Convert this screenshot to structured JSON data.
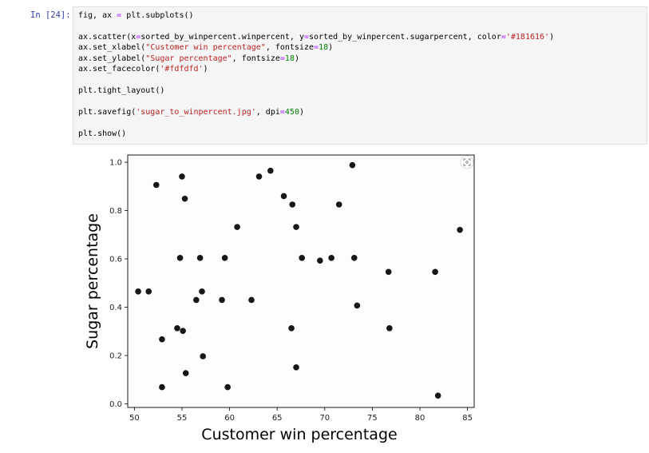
{
  "cell": {
    "prompt": "In [24]:",
    "code_lines": [
      [
        {
          "t": "fig, ax "
        },
        {
          "t": "=",
          "c": "op"
        },
        {
          "t": " plt.subplots()"
        }
      ],
      [],
      [
        {
          "t": "ax.scatter(x"
        },
        {
          "t": "=",
          "c": "op"
        },
        {
          "t": "sorted_by_winpercent.winpercent, y"
        },
        {
          "t": "=",
          "c": "op"
        },
        {
          "t": "sorted_by_winpercent.sugarpercent, color"
        },
        {
          "t": "=",
          "c": "op"
        },
        {
          "t": "'#181616'",
          "c": "str"
        },
        {
          "t": ")"
        }
      ],
      [
        {
          "t": "ax.set_xlabel("
        },
        {
          "t": "\"Customer win percentage\"",
          "c": "str"
        },
        {
          "t": ", fontsize"
        },
        {
          "t": "=",
          "c": "op"
        },
        {
          "t": "18",
          "c": "num"
        },
        {
          "t": ")"
        }
      ],
      [
        {
          "t": "ax.set_ylabel("
        },
        {
          "t": "\"Sugar percentage\"",
          "c": "str"
        },
        {
          "t": ", fontsize"
        },
        {
          "t": "=",
          "c": "op"
        },
        {
          "t": "18",
          "c": "num"
        },
        {
          "t": ")"
        }
      ],
      [
        {
          "t": "ax.set_facecolor("
        },
        {
          "t": "'#fdfdfd'",
          "c": "str"
        },
        {
          "t": ")"
        }
      ],
      [],
      [
        {
          "t": "plt.tight_layout()"
        }
      ],
      [],
      [
        {
          "t": "plt.savefig("
        },
        {
          "t": "'sugar_to_winpercent.jpg'",
          "c": "str"
        },
        {
          "t": ", dpi"
        },
        {
          "t": "=",
          "c": "op"
        },
        {
          "t": "450",
          "c": "num"
        },
        {
          "t": ")"
        }
      ],
      [],
      [
        {
          "t": "plt.show()"
        }
      ]
    ]
  },
  "colors": {
    "marker": "#181616",
    "plot_bg": "#fdfdfd",
    "prompt": "#303f9f",
    "string": "#ba2121",
    "operator": "#aa22ff",
    "number": "#008000"
  },
  "output_icon": "expand-image-icon",
  "chart_data": {
    "type": "scatter",
    "xlabel": "Customer win percentage",
    "ylabel": "Sugar percentage",
    "xlim": [
      49.3,
      85.7
    ],
    "ylim": [
      -0.015,
      1.03
    ],
    "xticks": [
      50,
      55,
      60,
      65,
      70,
      75,
      80,
      85
    ],
    "yticks": [
      0.0,
      0.2,
      0.4,
      0.6,
      0.8,
      1.0
    ],
    "ytick_labels": [
      "0.0",
      "0.2",
      "0.4",
      "0.6",
      "0.8",
      "1.0"
    ],
    "series": [
      {
        "points": [
          [
            50.4,
            0.465
          ],
          [
            51.5,
            0.465
          ],
          [
            52.3,
            0.906
          ],
          [
            52.9,
            0.267
          ],
          [
            52.9,
            0.069
          ],
          [
            54.5,
            0.313
          ],
          [
            54.8,
            0.604
          ],
          [
            55.0,
            0.941
          ],
          [
            55.1,
            0.302
          ],
          [
            55.3,
            0.849
          ],
          [
            55.4,
            0.127
          ],
          [
            56.5,
            0.43
          ],
          [
            56.9,
            0.604
          ],
          [
            57.1,
            0.465
          ],
          [
            57.2,
            0.197
          ],
          [
            59.2,
            0.43
          ],
          [
            59.5,
            0.604
          ],
          [
            59.8,
            0.069
          ],
          [
            60.8,
            0.732
          ],
          [
            62.3,
            0.43
          ],
          [
            63.1,
            0.941
          ],
          [
            64.3,
            0.965
          ],
          [
            65.7,
            0.86
          ],
          [
            66.5,
            0.313
          ],
          [
            66.6,
            0.825
          ],
          [
            67.0,
            0.732
          ],
          [
            67.0,
            0.151
          ],
          [
            67.6,
            0.604
          ],
          [
            69.5,
            0.593
          ],
          [
            70.7,
            0.604
          ],
          [
            71.5,
            0.825
          ],
          [
            72.9,
            0.988
          ],
          [
            73.1,
            0.604
          ],
          [
            73.4,
            0.407
          ],
          [
            76.7,
            0.546
          ],
          [
            76.8,
            0.313
          ],
          [
            81.6,
            0.546
          ],
          [
            81.9,
            0.034
          ],
          [
            84.2,
            0.72
          ]
        ]
      }
    ]
  }
}
